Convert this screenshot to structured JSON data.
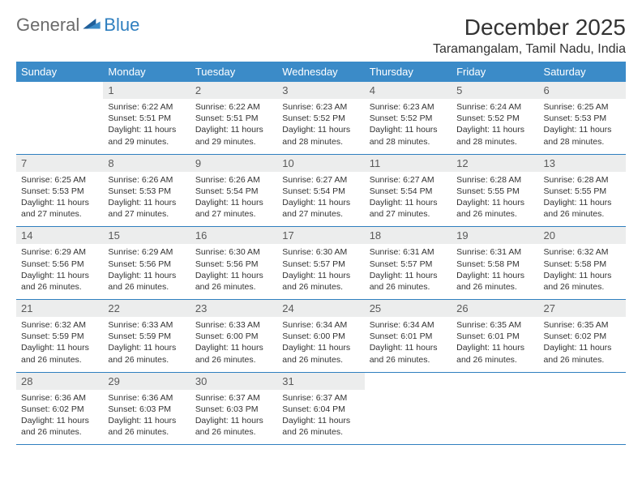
{
  "logo": {
    "word1": "General",
    "word2": "Blue"
  },
  "title": "December 2025",
  "location": "Taramangalam, Tamil Nadu, India",
  "colors": {
    "header_bg": "#3b8bc8",
    "header_text": "#ffffff",
    "daynum_bg": "#eceded",
    "daynum_text": "#5a5a5a",
    "rule": "#2f7fbf",
    "body_text": "#333333"
  },
  "day_names": [
    "Sunday",
    "Monday",
    "Tuesday",
    "Wednesday",
    "Thursday",
    "Friday",
    "Saturday"
  ],
  "first_weekday": 1,
  "days": [
    {
      "n": 1,
      "sr": "6:22 AM",
      "ss": "5:51 PM",
      "dl": "11 hours and 29 minutes."
    },
    {
      "n": 2,
      "sr": "6:22 AM",
      "ss": "5:51 PM",
      "dl": "11 hours and 29 minutes."
    },
    {
      "n": 3,
      "sr": "6:23 AM",
      "ss": "5:52 PM",
      "dl": "11 hours and 28 minutes."
    },
    {
      "n": 4,
      "sr": "6:23 AM",
      "ss": "5:52 PM",
      "dl": "11 hours and 28 minutes."
    },
    {
      "n": 5,
      "sr": "6:24 AM",
      "ss": "5:52 PM",
      "dl": "11 hours and 28 minutes."
    },
    {
      "n": 6,
      "sr": "6:25 AM",
      "ss": "5:53 PM",
      "dl": "11 hours and 28 minutes."
    },
    {
      "n": 7,
      "sr": "6:25 AM",
      "ss": "5:53 PM",
      "dl": "11 hours and 27 minutes."
    },
    {
      "n": 8,
      "sr": "6:26 AM",
      "ss": "5:53 PM",
      "dl": "11 hours and 27 minutes."
    },
    {
      "n": 9,
      "sr": "6:26 AM",
      "ss": "5:54 PM",
      "dl": "11 hours and 27 minutes."
    },
    {
      "n": 10,
      "sr": "6:27 AM",
      "ss": "5:54 PM",
      "dl": "11 hours and 27 minutes."
    },
    {
      "n": 11,
      "sr": "6:27 AM",
      "ss": "5:54 PM",
      "dl": "11 hours and 27 minutes."
    },
    {
      "n": 12,
      "sr": "6:28 AM",
      "ss": "5:55 PM",
      "dl": "11 hours and 26 minutes."
    },
    {
      "n": 13,
      "sr": "6:28 AM",
      "ss": "5:55 PM",
      "dl": "11 hours and 26 minutes."
    },
    {
      "n": 14,
      "sr": "6:29 AM",
      "ss": "5:56 PM",
      "dl": "11 hours and 26 minutes."
    },
    {
      "n": 15,
      "sr": "6:29 AM",
      "ss": "5:56 PM",
      "dl": "11 hours and 26 minutes."
    },
    {
      "n": 16,
      "sr": "6:30 AM",
      "ss": "5:56 PM",
      "dl": "11 hours and 26 minutes."
    },
    {
      "n": 17,
      "sr": "6:30 AM",
      "ss": "5:57 PM",
      "dl": "11 hours and 26 minutes."
    },
    {
      "n": 18,
      "sr": "6:31 AM",
      "ss": "5:57 PM",
      "dl": "11 hours and 26 minutes."
    },
    {
      "n": 19,
      "sr": "6:31 AM",
      "ss": "5:58 PM",
      "dl": "11 hours and 26 minutes."
    },
    {
      "n": 20,
      "sr": "6:32 AM",
      "ss": "5:58 PM",
      "dl": "11 hours and 26 minutes."
    },
    {
      "n": 21,
      "sr": "6:32 AM",
      "ss": "5:59 PM",
      "dl": "11 hours and 26 minutes."
    },
    {
      "n": 22,
      "sr": "6:33 AM",
      "ss": "5:59 PM",
      "dl": "11 hours and 26 minutes."
    },
    {
      "n": 23,
      "sr": "6:33 AM",
      "ss": "6:00 PM",
      "dl": "11 hours and 26 minutes."
    },
    {
      "n": 24,
      "sr": "6:34 AM",
      "ss": "6:00 PM",
      "dl": "11 hours and 26 minutes."
    },
    {
      "n": 25,
      "sr": "6:34 AM",
      "ss": "6:01 PM",
      "dl": "11 hours and 26 minutes."
    },
    {
      "n": 26,
      "sr": "6:35 AM",
      "ss": "6:01 PM",
      "dl": "11 hours and 26 minutes."
    },
    {
      "n": 27,
      "sr": "6:35 AM",
      "ss": "6:02 PM",
      "dl": "11 hours and 26 minutes."
    },
    {
      "n": 28,
      "sr": "6:36 AM",
      "ss": "6:02 PM",
      "dl": "11 hours and 26 minutes."
    },
    {
      "n": 29,
      "sr": "6:36 AM",
      "ss": "6:03 PM",
      "dl": "11 hours and 26 minutes."
    },
    {
      "n": 30,
      "sr": "6:37 AM",
      "ss": "6:03 PM",
      "dl": "11 hours and 26 minutes."
    },
    {
      "n": 31,
      "sr": "6:37 AM",
      "ss": "6:04 PM",
      "dl": "11 hours and 26 minutes."
    }
  ],
  "labels": {
    "sunrise": "Sunrise:",
    "sunset": "Sunset:",
    "daylight": "Daylight:"
  }
}
